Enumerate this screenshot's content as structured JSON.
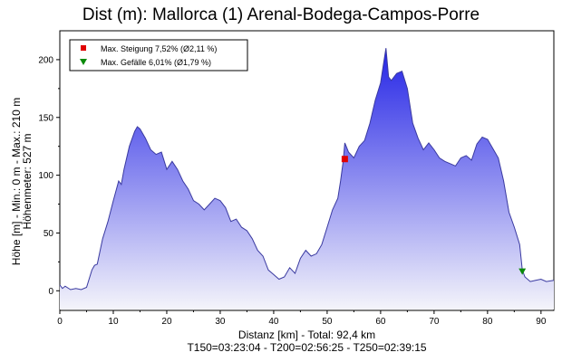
{
  "title": "Dist (m): Mallorca (1) Arenal-Bodega-Campos-Porre",
  "chart_data": {
    "type": "area",
    "title": "Dist (m): Mallorca (1) Arenal-Bodega-Campos-Porre",
    "xlabel": "Distanz [km] - Total: 92,4 km",
    "footer": "T150=03:23:04 - T200=02:56:25 - T250=02:39:15",
    "ylabel": [
      "Höhe [m] - Min.: 0 m - Max.: 210 m",
      "Höhenmeter: 527 m"
    ],
    "xlim": [
      0,
      92.4
    ],
    "ylim": [
      -17,
      225
    ],
    "xticks": [
      0,
      10,
      20,
      30,
      40,
      50,
      60,
      70,
      80,
      90
    ],
    "yticks": [
      0,
      50,
      100,
      150,
      200
    ],
    "grid": false,
    "fill_colors": {
      "top": "#2424e6",
      "bottom": "#f4f4fa"
    },
    "line_color": "#3a3aa0",
    "x": [
      0,
      0.5,
      1,
      2,
      3,
      4,
      5,
      6,
      6.5,
      7,
      8,
      9,
      10,
      11,
      11.5,
      12,
      13,
      14,
      14.5,
      15,
      16,
      17,
      18,
      19,
      20,
      21,
      22,
      23,
      24,
      25,
      26,
      27,
      28,
      29,
      30,
      31,
      32,
      33,
      34,
      35,
      36,
      37,
      38,
      39,
      40,
      41,
      42,
      43,
      44,
      45,
      46,
      47,
      48,
      49,
      50,
      51,
      52,
      52.5,
      53,
      53.3,
      54,
      55,
      56,
      57,
      58,
      59,
      60,
      60.5,
      61,
      61.5,
      62,
      63,
      64,
      65,
      66,
      67,
      68,
      69,
      70,
      71,
      72,
      73,
      74,
      75,
      76,
      77,
      78,
      79,
      80,
      81,
      82,
      83,
      84,
      85,
      86,
      86.5,
      87,
      88,
      89,
      90,
      91,
      92.4
    ],
    "y": [
      5,
      2,
      4,
      1,
      2,
      1,
      3,
      18,
      22,
      23,
      45,
      60,
      78,
      95,
      92,
      105,
      125,
      138,
      142,
      140,
      132,
      122,
      118,
      120,
      105,
      112,
      105,
      95,
      88,
      78,
      75,
      70,
      75,
      80,
      78,
      72,
      60,
      62,
      55,
      52,
      45,
      35,
      30,
      18,
      14,
      10,
      12,
      20,
      15,
      28,
      35,
      30,
      32,
      40,
      55,
      70,
      80,
      95,
      112,
      128,
      120,
      115,
      125,
      130,
      145,
      165,
      180,
      195,
      210,
      185,
      182,
      188,
      190,
      175,
      145,
      132,
      122,
      128,
      122,
      115,
      112,
      110,
      108,
      115,
      117,
      113,
      127,
      133,
      131,
      123,
      115,
      95,
      68,
      55,
      40,
      18,
      12,
      8,
      9,
      10,
      8,
      9
    ],
    "markers": [
      {
        "label": "Max. Steigung 7,52% (Ø2,11 %)",
        "x": 53.3,
        "y": 114,
        "shape": "square",
        "color": "#e00000"
      },
      {
        "label": "Max. Gefälle 6,01% (Ø1,79 %)",
        "x": 86.5,
        "y": 17,
        "shape": "triangle-down",
        "color": "#0a8a0a"
      }
    ],
    "legend": {
      "position": "top-left"
    }
  }
}
